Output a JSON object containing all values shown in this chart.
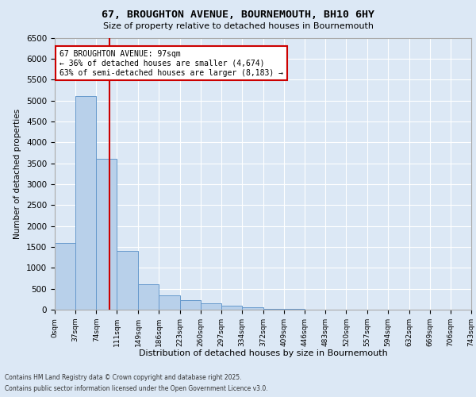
{
  "title1": "67, BROUGHTON AVENUE, BOURNEMOUTH, BH10 6HY",
  "title2": "Size of property relative to detached houses in Bournemouth",
  "xlabel": "Distribution of detached houses by size in Bournemouth",
  "ylabel": "Number of detached properties",
  "bin_edges": [
    0,
    37,
    74,
    111,
    149,
    186,
    223,
    260,
    297,
    334,
    372,
    409,
    446,
    483,
    520,
    557,
    594,
    632,
    669,
    706,
    743
  ],
  "bar_heights": [
    1600,
    5100,
    3600,
    1400,
    600,
    350,
    220,
    160,
    90,
    50,
    25,
    15,
    8,
    4,
    2,
    1,
    1,
    0,
    0,
    0
  ],
  "bar_color": "#b8d0ea",
  "bar_edgecolor": "#6699cc",
  "property_size": 97,
  "red_line_color": "#cc0000",
  "annotation_text": "67 BROUGHTON AVENUE: 97sqm\n← 36% of detached houses are smaller (4,674)\n63% of semi-detached houses are larger (8,183) →",
  "annotation_box_edgecolor": "#cc0000",
  "ylim": [
    0,
    6500
  ],
  "yticks": [
    0,
    500,
    1000,
    1500,
    2000,
    2500,
    3000,
    3500,
    4000,
    4500,
    5000,
    5500,
    6000,
    6500
  ],
  "footer1": "Contains HM Land Registry data © Crown copyright and database right 2025.",
  "footer2": "Contains public sector information licensed under the Open Government Licence v3.0.",
  "bg_color": "#dce8f5",
  "plot_bg_color": "#dce8f5"
}
